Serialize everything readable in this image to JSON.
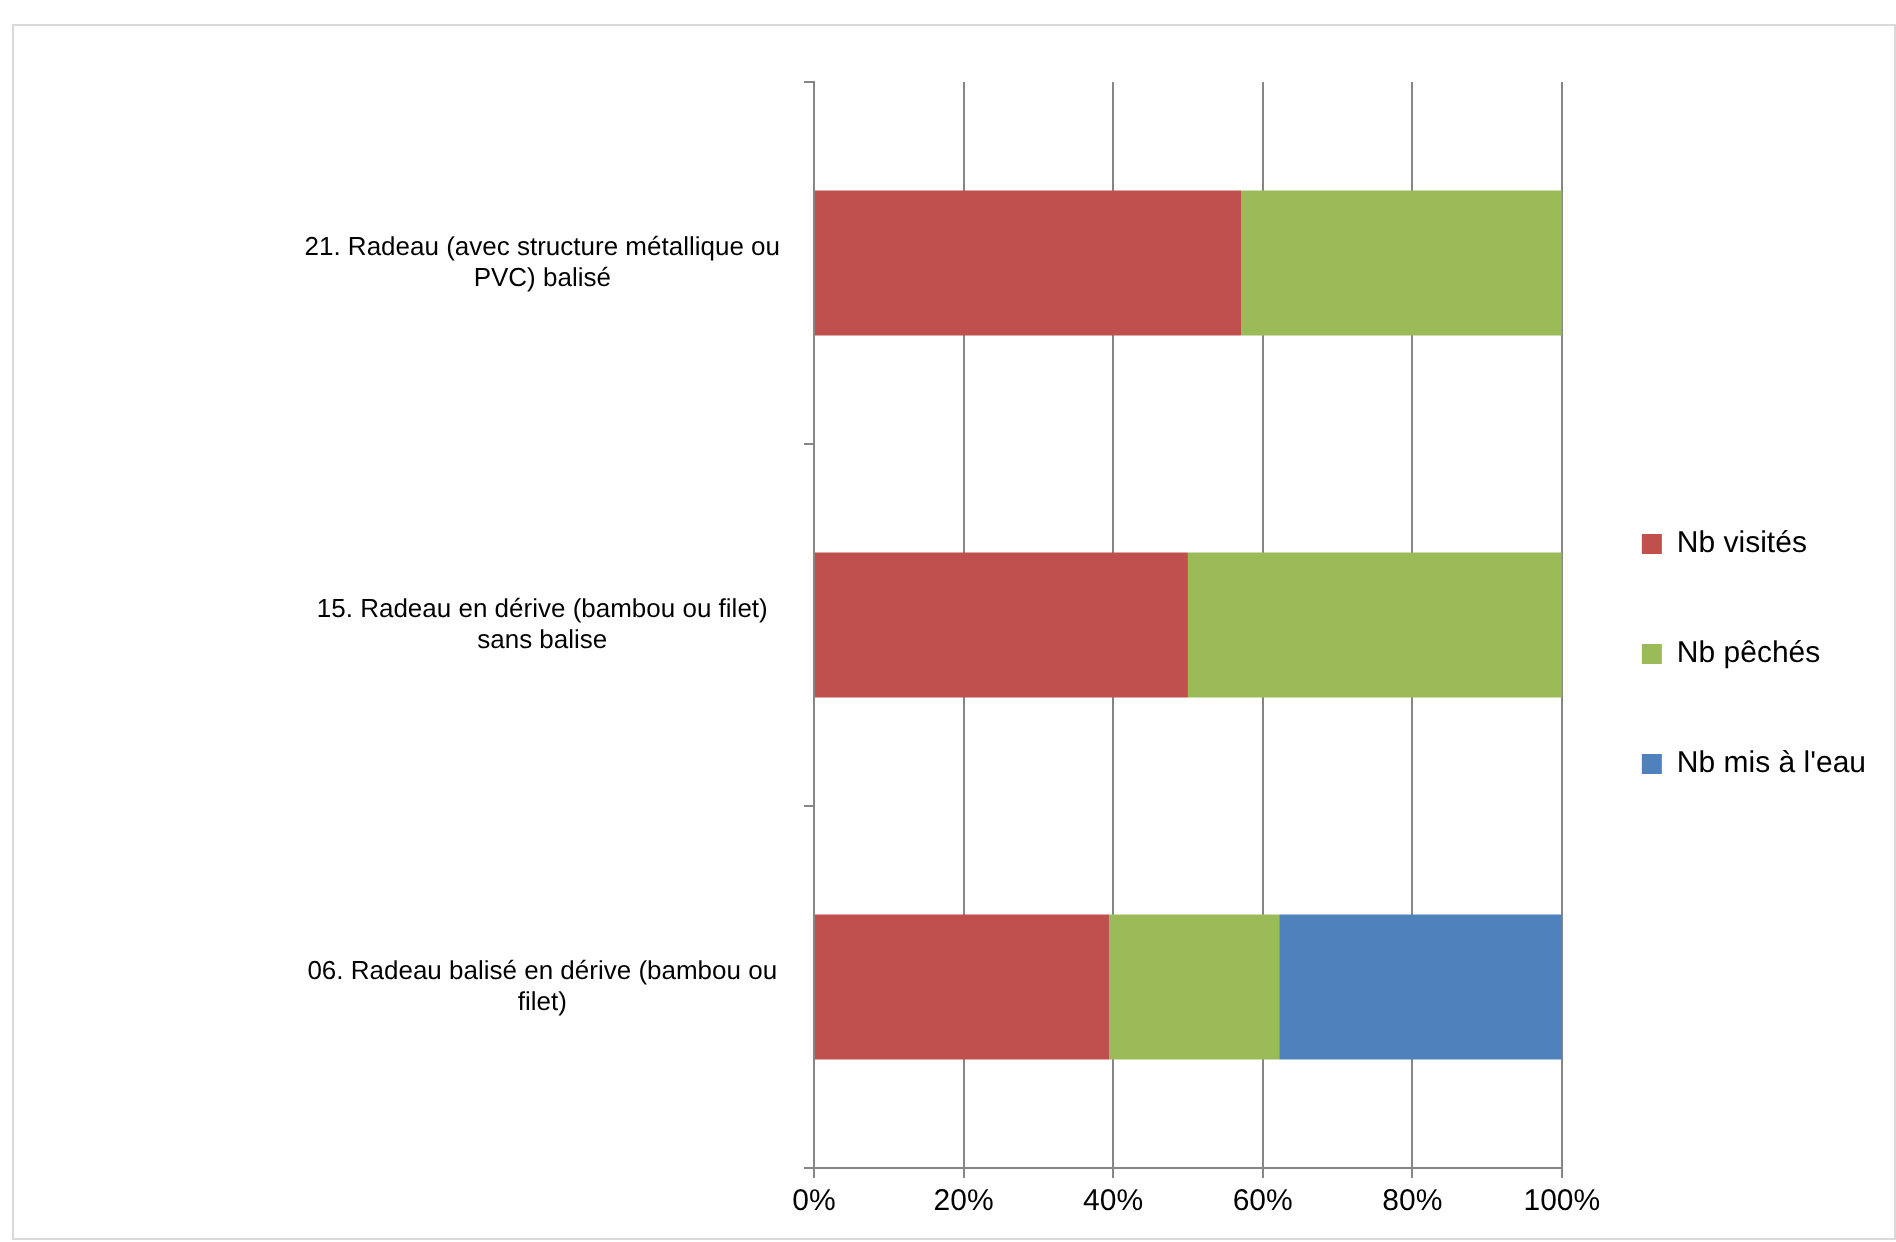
{
  "chart_data": {
    "type": "bar",
    "orientation": "horizontal",
    "stacked": true,
    "categories": [
      "21. Radeau (avec structure métallique ou PVC) balisé",
      "15. Radeau en dérive (bambou ou filet) sans balise",
      "06. Radeau balisé en dérive (bambou ou filet)"
    ],
    "series": [
      {
        "name": "Nb visités",
        "color": "#c0504d",
        "values": [
          57.1,
          50,
          39.5
        ]
      },
      {
        "name": "Nb pêchés",
        "color": "#9bbb59",
        "values": [
          42.9,
          50,
          22.7
        ]
      },
      {
        "name": "Nb mis à l'eau",
        "color": "#4f81bd",
        "values": [
          0,
          0,
          37.8
        ]
      }
    ],
    "xlim": [
      0,
      100
    ],
    "xticks": [
      {
        "value": 0,
        "label": "0%"
      },
      {
        "value": 20,
        "label": "20%"
      },
      {
        "value": 40,
        "label": "40%"
      },
      {
        "value": 60,
        "label": "60%"
      },
      {
        "value": 80,
        "label": "80%"
      },
      {
        "value": 100,
        "label": "100%"
      }
    ],
    "grid": "x",
    "legend": "right"
  }
}
